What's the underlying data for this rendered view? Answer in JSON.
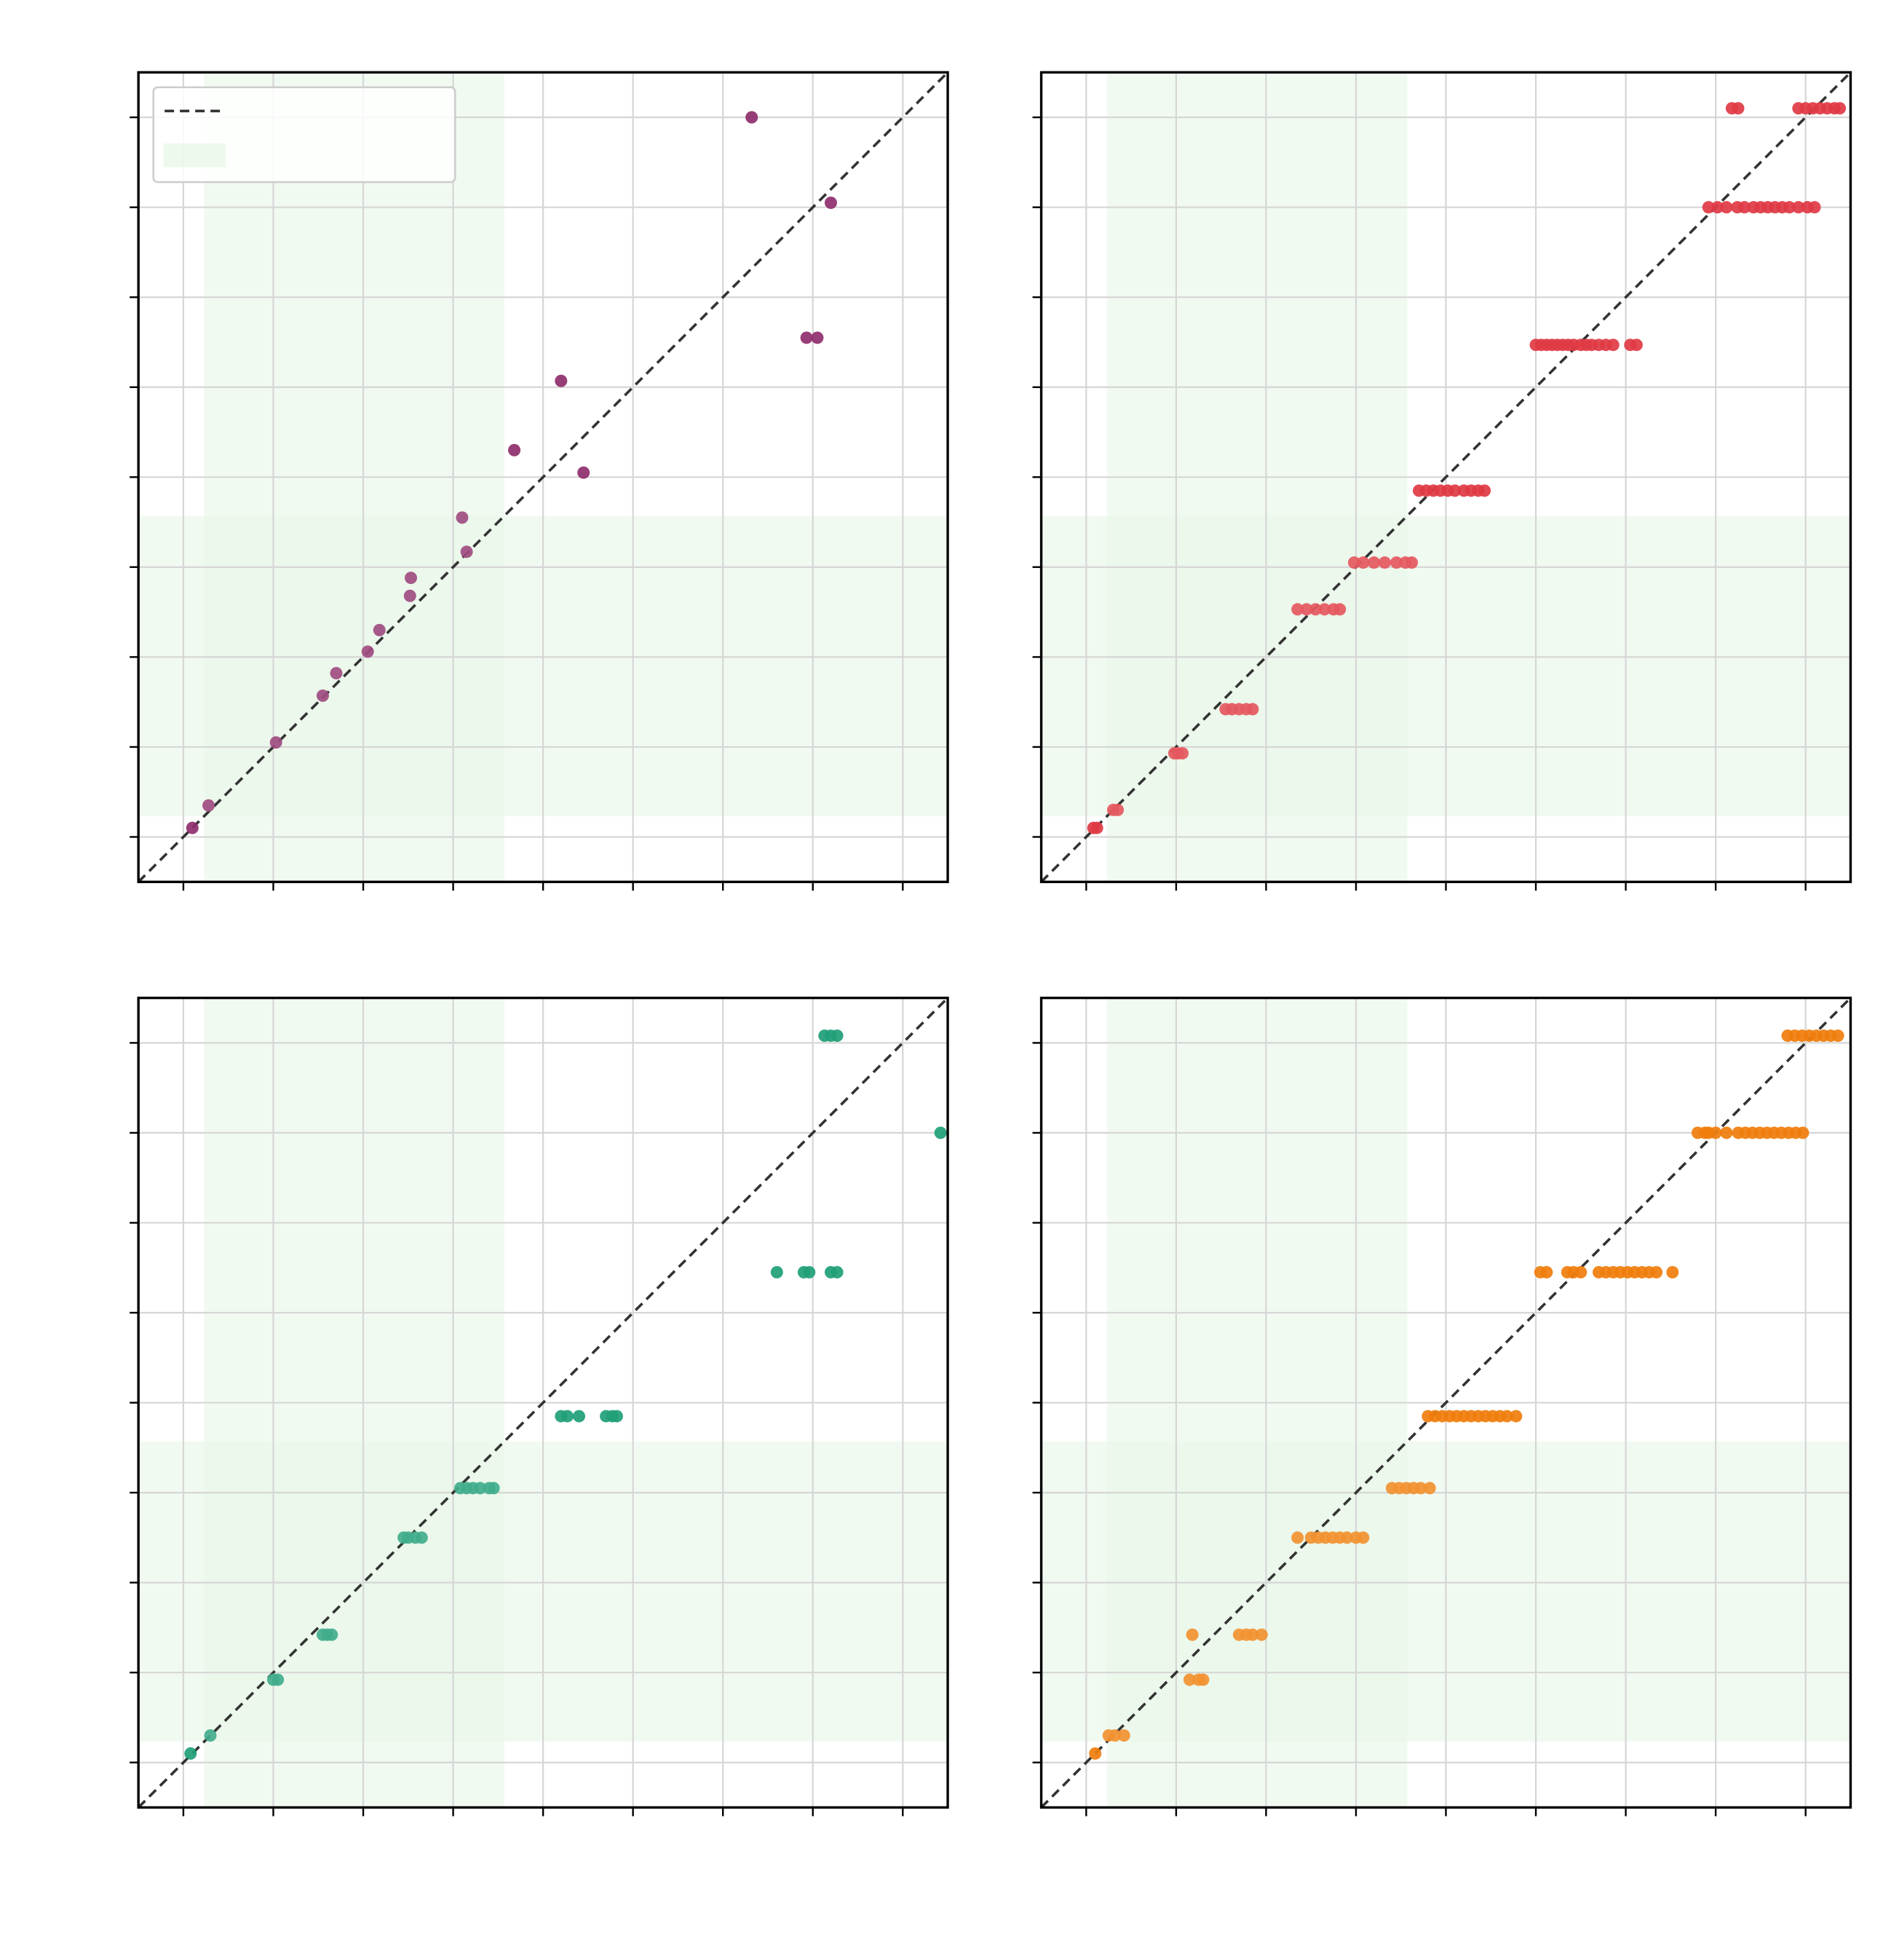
{
  "figure": {
    "background": "#ffffff"
  },
  "chart_data": [
    {
      "type": "scatter",
      "title": "",
      "xlabel": "",
      "ylabel": "",
      "xlim": [
        -0.5,
        8.5
      ],
      "ylim": [
        -0.5,
        8.5
      ],
      "xticks": [
        0,
        1,
        2,
        3,
        4,
        5,
        6,
        7,
        8
      ],
      "yticks": [
        0,
        1,
        2,
        3,
        4,
        5,
        6,
        7,
        8
      ],
      "xtick_labels": [
        "",
        "",
        "",
        "",
        "",
        "",
        "",
        "",
        ""
      ],
      "ytick_labels": [
        "",
        "",
        "",
        "",
        "",
        "",
        "",
        "",
        ""
      ],
      "grid": true,
      "diagonal": {
        "style": "dashed",
        "color": "#333333"
      },
      "bands": [
        {
          "axis": "x",
          "from": 0.23,
          "to": 3.57,
          "color": "#e6f6e6"
        },
        {
          "axis": "y",
          "from": 0.23,
          "to": 3.57,
          "color": "#e6f6e6"
        }
      ],
      "legend": {
        "placement": "top-left",
        "entries": [
          "",
          ""
        ]
      },
      "color": "#8e2c6b",
      "series": [
        {
          "x": [
            0.1,
            0.28,
            1.03,
            1.55,
            1.7,
            2.05,
            2.18,
            2.52,
            2.53,
            3.1,
            3.15,
            3.68,
            4.2,
            4.45,
            6.32,
            6.93,
            7.05,
            7.2
          ],
          "y": [
            0.1,
            0.35,
            1.05,
            1.57,
            1.82,
            2.06,
            2.3,
            2.68,
            2.88,
            3.55,
            3.17,
            4.3,
            5.07,
            4.05,
            8.0,
            5.55,
            5.55,
            7.05
          ]
        }
      ]
    },
    {
      "type": "scatter",
      "title": "",
      "xlabel": "",
      "ylabel": "",
      "xlim": [
        -0.5,
        8.5
      ],
      "ylim": [
        -0.5,
        8.5
      ],
      "xticks": [
        0,
        1,
        2,
        3,
        4,
        5,
        6,
        7,
        8
      ],
      "yticks": [
        0,
        1,
        2,
        3,
        4,
        5,
        6,
        7,
        8
      ],
      "xtick_labels": [
        "",
        "",
        "",
        "",
        "",
        "",
        "",
        "",
        ""
      ],
      "ytick_labels": [
        "",
        "",
        "",
        "",
        "",
        "",
        "",
        "",
        ""
      ],
      "grid": true,
      "diagonal": {
        "style": "dashed",
        "color": "#333333"
      },
      "bands": [
        {
          "axis": "x",
          "from": 0.23,
          "to": 3.57,
          "color": "#e6f6e6"
        },
        {
          "axis": "y",
          "from": 0.23,
          "to": 3.57,
          "color": "#e6f6e6"
        }
      ],
      "color": "#e03a44",
      "series": [
        {
          "x": [
            0.08,
            0.12,
            0.3,
            0.35,
            0.98,
            1.02,
            1.07,
            1.55,
            1.62,
            1.7,
            1.78,
            1.85,
            2.35,
            2.45,
            2.55,
            2.65,
            2.75,
            2.82,
            2.98,
            3.08,
            3.2,
            3.32,
            3.45,
            3.55,
            3.62,
            3.7,
            3.78,
            3.86,
            3.94,
            4.02,
            4.1,
            4.2,
            4.28,
            4.36,
            4.43,
            5.0,
            5.06,
            5.12,
            5.18,
            5.24,
            5.3,
            5.36,
            5.42,
            5.5,
            5.56,
            5.62,
            5.7,
            5.78,
            5.86,
            6.05,
            6.12,
            6.92,
            7.02,
            7.12,
            7.24,
            7.32,
            7.42,
            7.5,
            7.58,
            7.66,
            7.74,
            7.82,
            7.92,
            8.02,
            8.1,
            7.18,
            7.25,
            7.92,
            8.0,
            8.08,
            8.16,
            8.24,
            8.32,
            8.38
          ],
          "y": [
            0.1,
            0.1,
            0.3,
            0.3,
            0.93,
            0.93,
            0.93,
            1.42,
            1.42,
            1.42,
            1.42,
            1.42,
            2.53,
            2.53,
            2.53,
            2.53,
            2.53,
            2.53,
            3.05,
            3.05,
            3.05,
            3.05,
            3.05,
            3.05,
            3.05,
            3.85,
            3.85,
            3.85,
            3.85,
            3.85,
            3.85,
            3.85,
            3.85,
            3.85,
            3.85,
            5.47,
            5.47,
            5.47,
            5.47,
            5.47,
            5.47,
            5.47,
            5.47,
            5.47,
            5.47,
            5.47,
            5.47,
            5.47,
            5.47,
            5.47,
            5.47,
            7.0,
            7.0,
            7.0,
            7.0,
            7.0,
            7.0,
            7.0,
            7.0,
            7.0,
            7.0,
            7.0,
            7.0,
            7.0,
            7.0,
            8.1,
            8.1,
            8.1,
            8.1,
            8.1,
            8.1,
            8.1,
            8.1,
            8.1
          ]
        }
      ]
    },
    {
      "type": "scatter",
      "title": "",
      "xlabel": "",
      "ylabel": "",
      "xlim": [
        -0.5,
        8.5
      ],
      "ylim": [
        -0.5,
        8.5
      ],
      "xticks": [
        0,
        1,
        2,
        3,
        4,
        5,
        6,
        7,
        8
      ],
      "yticks": [
        0,
        1,
        2,
        3,
        4,
        5,
        6,
        7,
        8
      ],
      "xtick_labels": [
        "",
        "",
        "",
        "",
        "",
        "",
        "",
        "",
        ""
      ],
      "ytick_labels": [
        "",
        "",
        "",
        "",
        "",
        "",
        "",
        "",
        ""
      ],
      "grid": true,
      "diagonal": {
        "style": "dashed",
        "color": "#333333"
      },
      "bands": [
        {
          "axis": "x",
          "from": 0.23,
          "to": 3.57,
          "color": "#e6f6e6"
        },
        {
          "axis": "y",
          "from": 0.23,
          "to": 3.57,
          "color": "#e6f6e6"
        }
      ],
      "color": "#1f9e78",
      "series": [
        {
          "x": [
            0.08,
            0.3,
            1.0,
            1.05,
            1.55,
            1.6,
            1.65,
            2.45,
            2.5,
            2.58,
            2.65,
            3.08,
            3.15,
            3.22,
            3.3,
            3.4,
            3.45,
            4.2,
            4.27,
            4.4,
            4.7,
            4.77,
            4.82,
            6.6,
            6.9,
            6.96,
            7.2,
            7.27,
            7.13,
            7.2,
            7.27,
            8.42
          ],
          "y": [
            0.1,
            0.3,
            0.92,
            0.92,
            1.42,
            1.42,
            1.42,
            2.5,
            2.5,
            2.5,
            2.5,
            3.05,
            3.05,
            3.05,
            3.05,
            3.05,
            3.05,
            3.85,
            3.85,
            3.85,
            3.85,
            3.85,
            3.85,
            5.45,
            5.45,
            5.45,
            5.45,
            5.45,
            8.08,
            8.08,
            8.08,
            7.0
          ]
        }
      ]
    },
    {
      "type": "scatter",
      "title": "",
      "xlabel": "",
      "ylabel": "",
      "xlim": [
        -0.5,
        8.5
      ],
      "ylim": [
        -0.5,
        8.5
      ],
      "xticks": [
        0,
        1,
        2,
        3,
        4,
        5,
        6,
        7,
        8
      ],
      "yticks": [
        0,
        1,
        2,
        3,
        4,
        5,
        6,
        7,
        8
      ],
      "xtick_labels": [
        "",
        "",
        "",
        "",
        "",
        "",
        "",
        "",
        ""
      ],
      "ytick_labels": [
        "",
        "",
        "",
        "",
        "",
        "",
        "",
        "",
        ""
      ],
      "grid": true,
      "diagonal": {
        "style": "dashed",
        "color": "#333333"
      },
      "bands": [
        {
          "axis": "x",
          "from": 0.23,
          "to": 3.57,
          "color": "#e6f6e6"
        },
        {
          "axis": "y",
          "from": 0.23,
          "to": 3.57,
          "color": "#e6f6e6"
        }
      ],
      "color": "#f07d0c",
      "series": [
        {
          "x": [
            0.1,
            0.25,
            0.32,
            0.42,
            1.15,
            1.25,
            1.3,
            1.7,
            1.78,
            1.85,
            1.95,
            1.18,
            2.35,
            2.5,
            2.58,
            2.66,
            2.74,
            2.82,
            2.9,
            3.0,
            3.08,
            3.4,
            3.48,
            3.56,
            3.64,
            3.72,
            3.82,
            3.8,
            3.88,
            3.96,
            4.04,
            4.12,
            4.2,
            4.28,
            4.36,
            4.44,
            4.52,
            4.6,
            4.68,
            4.78,
            5.05,
            5.12,
            5.35,
            5.42,
            5.5,
            5.7,
            5.78,
            5.86,
            5.94,
            6.02,
            6.1,
            6.18,
            6.26,
            6.34,
            6.52,
            6.8,
            6.88,
            6.92,
            7.0,
            7.12,
            7.25,
            7.33,
            7.41,
            7.49,
            7.57,
            7.65,
            7.73,
            7.81,
            7.89,
            7.97,
            7.8,
            7.88,
            7.96,
            8.04,
            8.12,
            8.2,
            8.28,
            8.36
          ],
          "y": [
            0.1,
            0.3,
            0.3,
            0.3,
            0.92,
            0.92,
            0.92,
            1.42,
            1.42,
            1.42,
            1.42,
            1.42,
            2.5,
            2.5,
            2.5,
            2.5,
            2.5,
            2.5,
            2.5,
            2.5,
            2.5,
            3.05,
            3.05,
            3.05,
            3.05,
            3.05,
            3.05,
            3.85,
            3.85,
            3.85,
            3.85,
            3.85,
            3.85,
            3.85,
            3.85,
            3.85,
            3.85,
            3.85,
            3.85,
            3.85,
            5.45,
            5.45,
            5.45,
            5.45,
            5.45,
            5.45,
            5.45,
            5.45,
            5.45,
            5.45,
            5.45,
            5.45,
            5.45,
            5.45,
            5.45,
            7.0,
            7.0,
            7.0,
            7.0,
            7.0,
            7.0,
            7.0,
            7.0,
            7.0,
            7.0,
            7.0,
            7.0,
            7.0,
            7.0,
            7.0,
            8.08,
            8.08,
            8.08,
            8.08,
            8.08,
            8.08,
            8.08,
            8.08
          ]
        }
      ]
    }
  ]
}
